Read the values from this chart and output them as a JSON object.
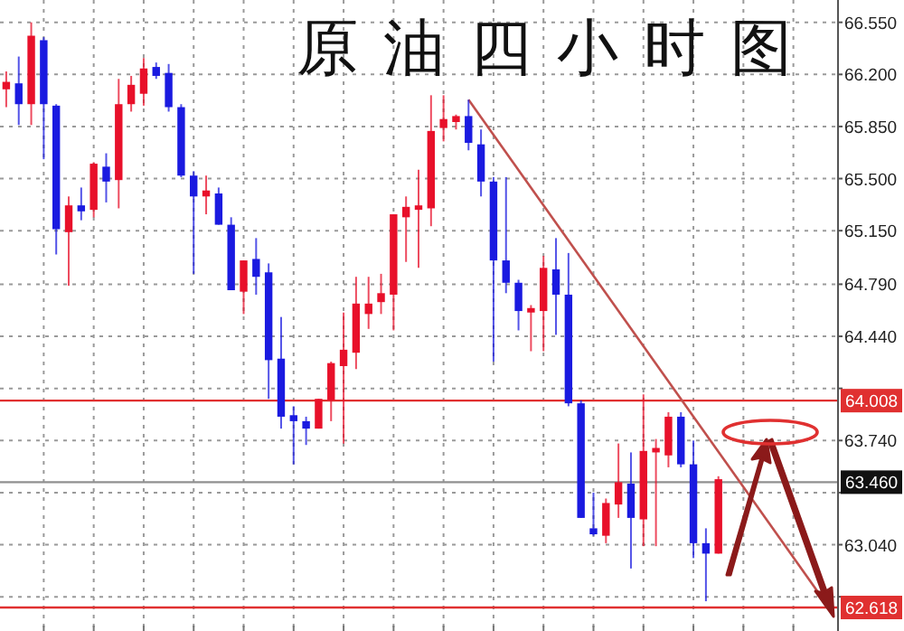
{
  "chart_data": {
    "type": "candlestick",
    "title": "原油四小时图",
    "categories": [
      null,
      null,
      null,
      null,
      null,
      null,
      null,
      null,
      null,
      null,
      null,
      null,
      null,
      null,
      null,
      null,
      null,
      null,
      null,
      null,
      null,
      null,
      null,
      null,
      null,
      null,
      null,
      null,
      null,
      null,
      null,
      null,
      null,
      null,
      null,
      null,
      null,
      null,
      null,
      null,
      null,
      null,
      null,
      null,
      null,
      null,
      null,
      null,
      null,
      null,
      null,
      null,
      null,
      null,
      null,
      null,
      null,
      null,
      null,
      null,
      null,
      null,
      null,
      null,
      null,
      null,
      null
    ],
    "ohlc": [
      [
        66.1,
        66.22,
        65.98,
        66.15
      ],
      [
        66.14,
        66.32,
        65.86,
        66.0
      ],
      [
        66.0,
        66.55,
        65.86,
        66.46
      ],
      [
        66.43,
        66.45,
        65.63,
        66.0
      ],
      [
        65.99,
        66.0,
        64.99,
        65.16
      ],
      [
        65.14,
        65.38,
        64.78,
        65.32
      ],
      [
        65.32,
        65.44,
        65.22,
        65.28
      ],
      [
        65.29,
        65.61,
        65.24,
        65.6
      ],
      [
        65.58,
        65.67,
        65.34,
        65.48
      ],
      [
        65.49,
        66.17,
        65.3,
        66.0
      ],
      [
        66.0,
        66.19,
        65.95,
        66.13
      ],
      [
        66.07,
        66.31,
        65.99,
        66.24
      ],
      [
        66.25,
        66.28,
        66.17,
        66.19
      ],
      [
        66.21,
        66.27,
        65.95,
        65.98
      ],
      [
        65.98,
        66.0,
        65.51,
        65.52
      ],
      [
        65.52,
        65.55,
        64.86,
        65.38
      ],
      [
        65.38,
        65.52,
        65.26,
        65.42
      ],
      [
        65.4,
        65.44,
        65.19,
        65.19
      ],
      [
        65.19,
        65.24,
        64.75,
        64.75
      ],
      [
        64.74,
        64.95,
        64.59,
        64.95
      ],
      [
        64.96,
        65.1,
        64.72,
        64.84
      ],
      [
        64.87,
        64.93,
        64.02,
        64.28
      ],
      [
        64.29,
        64.57,
        63.82,
        63.9
      ],
      [
        63.91,
        63.97,
        63.58,
        63.87
      ],
      [
        63.87,
        63.9,
        63.71,
        63.82
      ],
      [
        63.82,
        64.02,
        63.82,
        64.02
      ],
      [
        64.01,
        64.27,
        63.87,
        64.26
      ],
      [
        64.24,
        64.6,
        63.72,
        64.35
      ],
      [
        64.33,
        64.84,
        64.22,
        64.66
      ],
      [
        64.59,
        64.84,
        64.49,
        64.66
      ],
      [
        64.67,
        64.86,
        64.59,
        64.73
      ],
      [
        64.72,
        65.26,
        64.48,
        65.26
      ],
      [
        65.24,
        65.38,
        64.94,
        65.31
      ],
      [
        65.29,
        65.56,
        64.9,
        65.32
      ],
      [
        65.3,
        66.06,
        65.18,
        65.82
      ],
      [
        65.84,
        66.06,
        65.75,
        65.9
      ],
      [
        65.88,
        65.93,
        65.83,
        65.92
      ],
      [
        65.92,
        66.03,
        65.69,
        65.74
      ],
      [
        65.73,
        65.83,
        65.38,
        65.48
      ],
      [
        65.48,
        65.51,
        64.27,
        64.95
      ],
      [
        64.95,
        65.51,
        64.73,
        64.8
      ],
      [
        64.8,
        64.82,
        64.48,
        64.61
      ],
      [
        64.6,
        64.65,
        64.34,
        64.63
      ],
      [
        64.61,
        64.98,
        64.34,
        64.9
      ],
      [
        64.89,
        65.1,
        64.45,
        64.72
      ],
      [
        64.72,
        65.0,
        63.97,
        63.99
      ],
      [
        63.99,
        64.01,
        63.22,
        63.22
      ],
      [
        63.15,
        63.39,
        63.1,
        63.11
      ],
      [
        63.1,
        63.35,
        63.05,
        63.32
      ],
      [
        63.31,
        63.72,
        63.22,
        63.46
      ],
      [
        63.45,
        63.66,
        62.88,
        63.22
      ],
      [
        63.21,
        64.05,
        63.03,
        63.67
      ],
      [
        63.66,
        63.75,
        63.03,
        63.69
      ],
      [
        63.64,
        63.93,
        63.56,
        63.9
      ],
      [
        63.9,
        63.93,
        63.56,
        63.58
      ],
      [
        63.58,
        63.74,
        62.95,
        63.05
      ],
      [
        63.05,
        63.15,
        62.66,
        62.98
      ],
      [
        62.98,
        63.5,
        62.98,
        63.48
      ],
      null,
      null,
      null,
      null,
      null,
      null,
      null,
      null,
      null
    ],
    "colors": [
      "#e8102a",
      "#1a1ae0",
      "#e8102a",
      "#1a1ae0",
      "#1a1ae0",
      "#e8102a",
      "#1a1ae0",
      "#e8102a",
      "#1a1ae0",
      "#e8102a",
      "#e8102a",
      "#e8102a",
      "#1a1ae0",
      "#1a1ae0",
      "#1a1ae0",
      "#1a1ae0",
      "#e8102a",
      "#1a1ae0",
      "#1a1ae0",
      "#e8102a",
      "#1a1ae0",
      "#1a1ae0",
      "#1a1ae0",
      "#1a1ae0",
      "#1a1ae0",
      "#e8102a",
      "#e8102a",
      "#e8102a",
      "#e8102a",
      "#e8102a",
      "#e8102a",
      "#e8102a",
      "#e8102a",
      "#e8102a",
      "#e8102a",
      "#e8102a",
      "#e8102a",
      "#1a1ae0",
      "#1a1ae0",
      "#1a1ae0",
      "#1a1ae0",
      "#1a1ae0",
      "#e8102a",
      "#e8102a",
      "#1a1ae0",
      "#1a1ae0",
      "#1a1ae0",
      "#1a1ae0",
      "#e8102a",
      "#e8102a",
      "#1a1ae0",
      "#e8102a",
      "#e8102a",
      "#e8102a",
      "#1a1ae0",
      "#1a1ae0",
      "#1a1ae0",
      "#e8102a",
      null,
      null,
      null,
      null,
      null,
      null,
      null,
      null,
      null
    ],
    "series": [
      {
        "type": "line",
        "color": "#c0504d",
        "values": [
          null,
          null,
          null,
          null,
          null,
          null,
          null,
          null,
          null,
          null,
          null,
          null,
          null,
          null,
          null,
          null,
          null,
          null,
          null,
          null,
          null,
          null,
          null,
          null,
          null,
          null,
          null,
          null,
          null,
          null,
          null,
          null,
          null,
          null,
          null,
          null,
          null,
          66.03,
          null,
          null,
          null,
          null,
          null,
          null,
          null,
          null,
          null,
          null,
          null,
          null,
          null,
          null,
          null,
          null,
          null,
          null,
          null,
          null,
          null,
          null,
          null,
          null,
          null,
          null,
          null,
          null,
          62.6
        ]
      }
    ],
    "ylim": [
      62.46,
      66.7
    ],
    "yticks": [
      {
        "value": 66.55,
        "label": "66.550"
      },
      {
        "value": 66.2,
        "label": "66.200"
      },
      {
        "value": 65.85,
        "label": "65.850"
      },
      {
        "value": 65.5,
        "label": "65.500"
      },
      {
        "value": 65.15,
        "label": "65.150"
      },
      {
        "value": 64.79,
        "label": "64.790"
      },
      {
        "value": 64.44,
        "label": "64.440"
      },
      {
        "value": 64.09,
        "label": null
      },
      {
        "value": 63.74,
        "label": "63.740"
      },
      {
        "value": 63.39,
        "label": null
      },
      {
        "value": 63.04,
        "label": "63.040"
      },
      {
        "value": 62.69,
        "label": null
      }
    ],
    "tick_labels": "y",
    "grid": true,
    "ref_lines": [
      {
        "axis": "y",
        "value": 64.008,
        "label": "64.008",
        "color": "#e03030"
      },
      {
        "axis": "y",
        "value": 63.46,
        "label": "63.460",
        "color": "#909090"
      },
      {
        "axis": "y",
        "value": 62.618,
        "label": "62.618",
        "color": "#e03030"
      }
    ]
  }
}
